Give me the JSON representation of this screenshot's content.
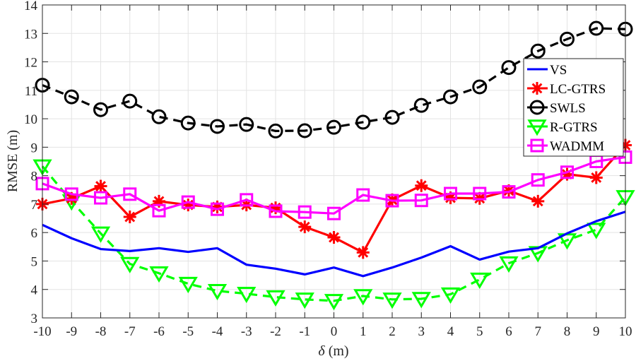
{
  "chart_data": {
    "type": "line",
    "title": "",
    "xlabel": "δ (m)",
    "ylabel": "RMSE (m)",
    "x": [
      -10,
      -9,
      -8,
      -7,
      -6,
      -5,
      -4,
      -3,
      -2,
      -1,
      0,
      1,
      2,
      3,
      4,
      5,
      6,
      7,
      8,
      9,
      10
    ],
    "xlim": [
      -10,
      10
    ],
    "ylim": [
      3,
      14
    ],
    "xticks": [
      "-10",
      "-9",
      "-8",
      "-7",
      "-6",
      "-5",
      "-4",
      "-3",
      "-2",
      "-1",
      "0",
      "1",
      "2",
      "3",
      "4",
      "5",
      "6",
      "7",
      "8",
      "9",
      "10"
    ],
    "yticks": [
      "3",
      "4",
      "5",
      "6",
      "7",
      "8",
      "9",
      "10",
      "11",
      "12",
      "13",
      "14"
    ],
    "grid": true,
    "legend_position": "upper right (inside)",
    "series": [
      {
        "name": "VS",
        "color": "#0000ff",
        "marker": "none",
        "line": "solid",
        "values": [
          6.27,
          5.8,
          5.42,
          5.35,
          5.45,
          5.32,
          5.45,
          4.87,
          4.73,
          4.53,
          4.77,
          4.47,
          4.77,
          5.12,
          5.52,
          5.05,
          5.33,
          5.45,
          5.97,
          6.4,
          6.73
        ]
      },
      {
        "name": "LC-GTRS",
        "color": "#ff0000",
        "marker": "asterisk",
        "line": "solid",
        "values": [
          7.0,
          7.2,
          7.63,
          6.55,
          7.1,
          6.97,
          6.9,
          6.97,
          6.87,
          6.2,
          5.83,
          5.3,
          7.15,
          7.65,
          7.22,
          7.2,
          7.47,
          7.1,
          8.05,
          7.93,
          9.07
        ]
      },
      {
        "name": "SWLS",
        "color": "#000000",
        "marker": "circle",
        "line": "dashed",
        "values": [
          11.18,
          10.77,
          10.32,
          10.62,
          10.07,
          9.85,
          9.73,
          9.8,
          9.57,
          9.58,
          9.7,
          9.88,
          10.05,
          10.47,
          10.77,
          11.12,
          11.8,
          12.38,
          12.8,
          13.18,
          13.15
        ]
      },
      {
        "name": "R-GTRS",
        "color": "#00ff00",
        "marker": "triangle-down",
        "line": "dashed",
        "values": [
          8.33,
          7.1,
          5.97,
          4.9,
          4.57,
          4.2,
          3.95,
          3.85,
          3.73,
          3.65,
          3.6,
          3.77,
          3.65,
          3.67,
          3.83,
          4.35,
          4.92,
          5.28,
          5.73,
          6.1,
          7.25
        ]
      },
      {
        "name": "WADMM",
        "color": "#ff00ff",
        "marker": "square",
        "line": "solid",
        "values": [
          7.72,
          7.35,
          7.22,
          7.35,
          6.77,
          7.07,
          6.82,
          7.15,
          6.75,
          6.72,
          6.67,
          7.32,
          7.12,
          7.13,
          7.37,
          7.37,
          7.43,
          7.85,
          8.12,
          8.5,
          8.65
        ]
      }
    ]
  }
}
